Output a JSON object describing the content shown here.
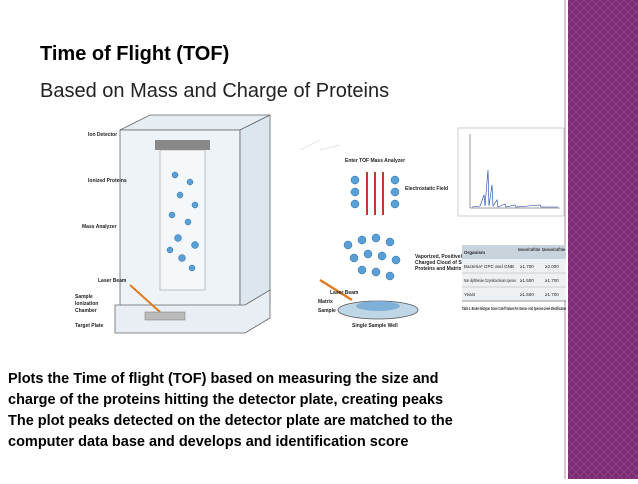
{
  "title": "Time of Flight (TOF)",
  "subtitle": "Based on Mass and Charge of Proteins",
  "left_diagram": {
    "labels": [
      "Ion Detector",
      "Ionized Proteins",
      "Mass Analyzer",
      "Laser Beam",
      "Sample",
      "Ionization",
      "Chamber",
      "Target Plate"
    ]
  },
  "middle_diagram": {
    "labels": [
      "Enter TOF Mass Analyzer",
      "Electrostatic Field",
      "Vaporized, Positively",
      "Charged Cloud of Sample",
      "Proteins and Matrix",
      "Laser Beam",
      "Matrix",
      "Sample",
      "Single Sample Well"
    ]
  },
  "table": {
    "headers": [
      "Organism",
      "Genus-Level Cutoff Value",
      "Species-Level Cutoff Value"
    ],
    "rows": [
      [
        "Bacteria* GPC and GNB",
        "≥1.700",
        "≥2.000"
      ],
      [
        "Non-diphtheriae Corynebacterium species",
        "≥1.500",
        "≥1.700"
      ],
      [
        "Yeast",
        "≥1.500",
        "≥1.700"
      ]
    ],
    "caption": "Table 1. Bruker Biotyper Score Cutoff Values For Genus- And Species-Level Identification"
  },
  "body": [
    "Plots the Time of flight (TOF) based on measuring the size and",
    "charge of the proteins hitting the detector plate, creating peaks",
    "The plot peaks detected on the detector plate are matched to the",
    "computer data base and develops and identification score"
  ]
}
